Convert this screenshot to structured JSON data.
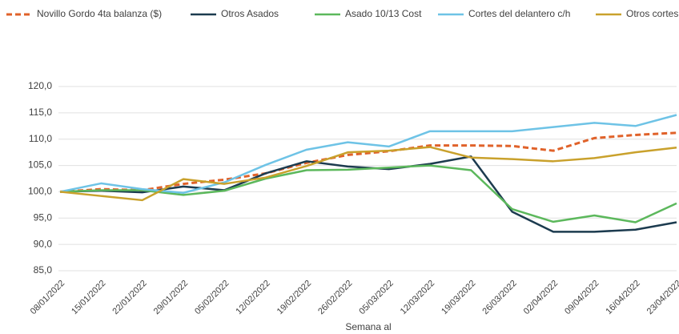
{
  "chart_data": {
    "type": "line",
    "x": [
      "08/01/2022",
      "15/01/2022",
      "22/01/2022",
      "29/01/2022",
      "05/02/2022",
      "12/02/2022",
      "19/02/2022",
      "26/02/2022",
      "05/03/2022",
      "12/03/2022",
      "19/03/2022",
      "26/03/2022",
      "02/04/2022",
      "09/04/2022",
      "16/04/2022",
      "23/04/2022"
    ],
    "xlabel": "Semana al",
    "series": [
      {
        "name": "Novillo Gordo 4ta balanza ($)",
        "color": "#e0622a",
        "dash": true,
        "values": [
          100,
          100.5,
          100.3,
          101.5,
          102.3,
          103.5,
          105.5,
          107,
          107.7,
          108.8,
          108.8,
          108.7,
          107.8,
          110.2,
          110.8,
          111.2
        ]
      },
      {
        "name": "Otros Asados",
        "color": "#1c3b4f",
        "values": [
          100,
          100.2,
          99.9,
          101,
          100.3,
          103.5,
          105.8,
          104.8,
          104.3,
          105.3,
          106.7,
          96.2,
          92.4,
          92.4,
          92.8,
          94.2
        ]
      },
      {
        "name": "Asado 10/13 Cost",
        "color": "#5cb85c",
        "values": [
          100,
          100.3,
          100.3,
          99.4,
          100.2,
          102.5,
          104.1,
          104.2,
          104.6,
          105,
          104.1,
          96.7,
          94.3,
          95.5,
          94.2,
          97.8
        ]
      },
      {
        "name": "Cortes del delantero c/h",
        "color": "#6ec3e6",
        "values": [
          100,
          101.6,
          100.5,
          99.8,
          101.8,
          105.1,
          108,
          109.4,
          108.6,
          111.5,
          111.5,
          111.5,
          112.3,
          113.1,
          112.5,
          114.6
        ]
      },
      {
        "name": "Otros cortes",
        "color": "#c9a12c",
        "values": [
          100,
          99.2,
          98.4,
          102.4,
          101.5,
          102.7,
          104.9,
          107.5,
          107.8,
          108.5,
          106.5,
          106.2,
          105.8,
          106.4,
          107.5,
          108.4
        ]
      }
    ],
    "ylim": [
      85,
      120
    ],
    "yticks": [
      {
        "value": 85,
        "label": "85,0"
      },
      {
        "value": 90,
        "label": "90,0"
      },
      {
        "value": 95,
        "label": "95,0"
      },
      {
        "value": 100,
        "label": "100,0"
      },
      {
        "value": 105,
        "label": "105,0"
      },
      {
        "value": 110,
        "label": "110,0"
      },
      {
        "value": 115,
        "label": "115,0"
      },
      {
        "value": 120,
        "label": "120,0"
      }
    ],
    "grid": true,
    "legend": "top"
  }
}
